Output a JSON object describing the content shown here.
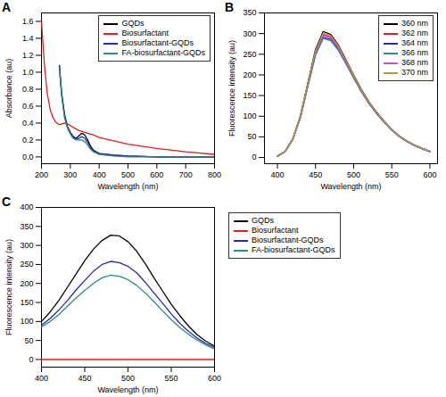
{
  "chart_data": [
    {
      "type": "line",
      "title": "A",
      "x_label": "Wavelength (nm)",
      "y_label": "Absorbance (au)",
      "x": [
        200,
        210,
        220,
        230,
        240,
        250,
        262,
        270,
        280,
        290,
        300,
        310,
        320,
        330,
        340,
        350,
        360,
        370,
        380,
        400,
        450,
        500,
        600,
        700,
        800
      ],
      "series": [
        {
          "name": "GQDs",
          "color": "#000000",
          "values": [
            null,
            null,
            null,
            null,
            null,
            null,
            1.08,
            0.75,
            0.5,
            0.36,
            0.29,
            0.24,
            0.22,
            0.25,
            0.28,
            0.26,
            0.2,
            0.13,
            0.08,
            0.04,
            0.02,
            0.01,
            0.0,
            0.0,
            0.0
          ]
        },
        {
          "name": "Biosurfactant",
          "color": "#e02020",
          "values": [
            1.6,
            1.1,
            0.75,
            0.56,
            0.46,
            0.41,
            0.38,
            0.39,
            0.4,
            0.39,
            0.37,
            0.35,
            0.33,
            0.31,
            0.3,
            0.29,
            0.28,
            0.27,
            0.26,
            0.23,
            0.19,
            0.15,
            0.1,
            0.06,
            0.03
          ]
        },
        {
          "name": "Biosurfactant-GQDs",
          "color": "#2a2aa8",
          "values": [
            null,
            null,
            null,
            null,
            null,
            null,
            1.08,
            0.74,
            0.48,
            0.35,
            0.28,
            0.23,
            0.21,
            0.22,
            0.24,
            0.22,
            0.17,
            0.11,
            0.07,
            0.04,
            0.02,
            0.01,
            0.0,
            0.0,
            0.0
          ]
        },
        {
          "name": "FA-biosurfactant-GQDs",
          "color": "#2e8b8b",
          "values": [
            null,
            null,
            null,
            null,
            null,
            null,
            1.05,
            0.72,
            0.46,
            0.34,
            0.27,
            0.22,
            0.2,
            0.2,
            0.2,
            0.18,
            0.14,
            0.09,
            0.06,
            0.03,
            0.01,
            0.0,
            0.0,
            0.0,
            0.0
          ]
        }
      ],
      "xlim": [
        200,
        800
      ],
      "xticks": [
        200,
        300,
        400,
        500,
        600,
        700,
        800
      ],
      "ylim": [
        -0.08,
        1.7
      ],
      "yticks": [
        {
          "value": 0,
          "label": "0.0"
        },
        {
          "value": 0.2,
          "label": "0.2"
        },
        {
          "value": 0.4,
          "label": "0.4"
        },
        {
          "value": 0.6,
          "label": "0.6"
        },
        {
          "value": 0.8,
          "label": "0.8"
        },
        {
          "value": 1,
          "label": "1.0"
        },
        {
          "value": 1.2,
          "label": "1.2"
        },
        {
          "value": 1.4,
          "label": "1.4"
        },
        {
          "value": 1.6,
          "label": "1.6"
        }
      ],
      "legend": "top-right"
    },
    {
      "type": "line",
      "title": "B",
      "x_label": "Wavelength (nm)",
      "y_label": "Fluorescence intensity (au)",
      "x": [
        400,
        410,
        420,
        430,
        440,
        450,
        460,
        470,
        480,
        490,
        500,
        510,
        520,
        530,
        540,
        550,
        560,
        570,
        580,
        590,
        600
      ],
      "series": [
        {
          "name": "360 nm",
          "color": "#000000",
          "values": [
            3,
            15,
            45,
            100,
            182,
            262,
            305,
            298,
            272,
            236,
            200,
            165,
            135,
            110,
            88,
            68,
            52,
            40,
            30,
            22,
            15
          ]
        },
        {
          "name": "362 nm",
          "color": "#e02020",
          "values": [
            3,
            15,
            44,
            98,
            178,
            257,
            298,
            292,
            267,
            232,
            197,
            163,
            133,
            108,
            87,
            67,
            51,
            39,
            29,
            22,
            15
          ]
        },
        {
          "name": "364 nm",
          "color": "#2a2aa8",
          "values": [
            3,
            14,
            43,
            96,
            174,
            251,
            291,
            286,
            262,
            228,
            194,
            161,
            131,
            107,
            86,
            66,
            51,
            39,
            29,
            21,
            14
          ]
        },
        {
          "name": "366 nm",
          "color": "#2e8b8b",
          "values": [
            3,
            14,
            43,
            95,
            172,
            248,
            288,
            283,
            259,
            226,
            192,
            159,
            130,
            106,
            85,
            66,
            50,
            38,
            29,
            21,
            14
          ]
        },
        {
          "name": "368 nm",
          "color": "#e040e0",
          "values": [
            3,
            15,
            44,
            97,
            176,
            254,
            295,
            289,
            265,
            230,
            196,
            162,
            132,
            108,
            86,
            67,
            51,
            39,
            29,
            22,
            15
          ]
        },
        {
          "name": "370 nm",
          "color": "#a0a040",
          "values": [
            3,
            15,
            45,
            99,
            180,
            259,
            302,
            295,
            270,
            234,
            199,
            164,
            134,
            109,
            87,
            68,
            52,
            40,
            30,
            22,
            15
          ]
        }
      ],
      "xlim": [
        383,
        610
      ],
      "xticks": [
        400,
        450,
        500,
        550,
        600
      ],
      "ylim": [
        -15,
        350
      ],
      "yticks": [
        0,
        50,
        100,
        150,
        200,
        250,
        300,
        350
      ],
      "legend": "top-right"
    },
    {
      "type": "line",
      "title": "C",
      "x_label": "Wavelength (nm)",
      "y_label": "Fluorescence intensity (au)",
      "x": [
        400,
        410,
        420,
        430,
        440,
        450,
        460,
        470,
        480,
        490,
        500,
        510,
        520,
        530,
        540,
        550,
        560,
        570,
        580,
        590,
        600
      ],
      "series": [
        {
          "name": "GQDs",
          "color": "#000000",
          "values": [
            100,
            125,
            155,
            190,
            225,
            260,
            290,
            313,
            327,
            325,
            310,
            285,
            252,
            215,
            180,
            145,
            115,
            88,
            65,
            48,
            35
          ]
        },
        {
          "name": "Biosurfactant",
          "color": "#e02020",
          "values": [
            0,
            0,
            0,
            0,
            0,
            0,
            0,
            0,
            0,
            0,
            0,
            0,
            0,
            0,
            0,
            0,
            0,
            0,
            0,
            0,
            0
          ]
        },
        {
          "name": "Biosurfactant-GQDs",
          "color": "#2a2aa8",
          "values": [
            90,
            108,
            130,
            155,
            183,
            208,
            232,
            250,
            258,
            255,
            245,
            228,
            203,
            175,
            148,
            120,
            95,
            74,
            56,
            42,
            32
          ]
        },
        {
          "name": "FA-biosurfactant-GQDs",
          "color": "#2e8b8b",
          "values": [
            85,
            100,
            118,
            140,
            162,
            182,
            200,
            215,
            222,
            219,
            210,
            195,
            175,
            152,
            128,
            105,
            84,
            66,
            51,
            38,
            28
          ]
        }
      ],
      "xlim": [
        400,
        600
      ],
      "xticks": [
        400,
        450,
        500,
        550,
        600
      ],
      "ylim": [
        -20,
        400
      ],
      "yticks": [
        0,
        50,
        100,
        150,
        200,
        250,
        300,
        350,
        400
      ],
      "legend": "right"
    }
  ]
}
